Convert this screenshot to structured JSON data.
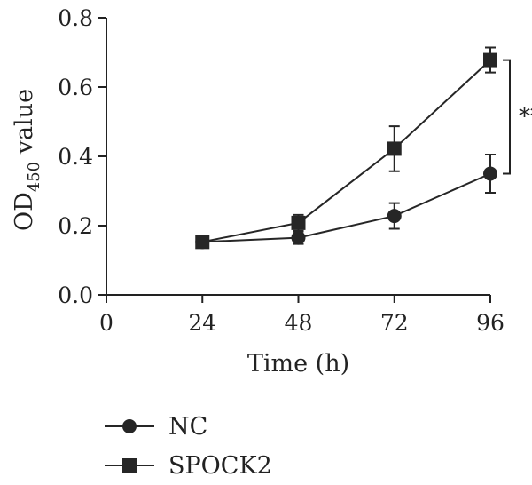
{
  "chart_data": {
    "type": "line",
    "title": "",
    "xlabel": "Time (h)",
    "ylabel": {
      "prefix": "OD",
      "subscript": "450",
      "suffix": " value"
    },
    "xlim": [
      0,
      96
    ],
    "ylim": [
      0,
      0.8
    ],
    "x_ticks": [
      0,
      24,
      48,
      72,
      96
    ],
    "x_tick_labels": [
      "0",
      "24",
      "48",
      "72",
      "96"
    ],
    "y_ticks": [
      0,
      0.2,
      0.4,
      0.6,
      0.8
    ],
    "y_tick_labels": [
      "0.0",
      "0.2",
      "0.4",
      "0.6",
      "0.8"
    ],
    "grid": false,
    "legend_position": "bottom-left",
    "series": [
      {
        "name": "NC",
        "marker": "circle",
        "color": "#262626",
        "x": [
          24,
          48,
          72,
          96
        ],
        "y": [
          0.153,
          0.165,
          0.228,
          0.35
        ],
        "error": [
          0,
          0.018,
          0.037,
          0.055
        ]
      },
      {
        "name": "SPOCK2",
        "marker": "square",
        "color": "#262626",
        "x": [
          24,
          48,
          72,
          96
        ],
        "y": [
          0.153,
          0.208,
          0.422,
          0.678
        ],
        "error": [
          0,
          0.023,
          0.065,
          0.036
        ]
      }
    ],
    "annotations": [
      {
        "type": "significance-bracket",
        "text": "**",
        "x": 96,
        "y_range": [
          0.35,
          0.678
        ]
      }
    ]
  }
}
